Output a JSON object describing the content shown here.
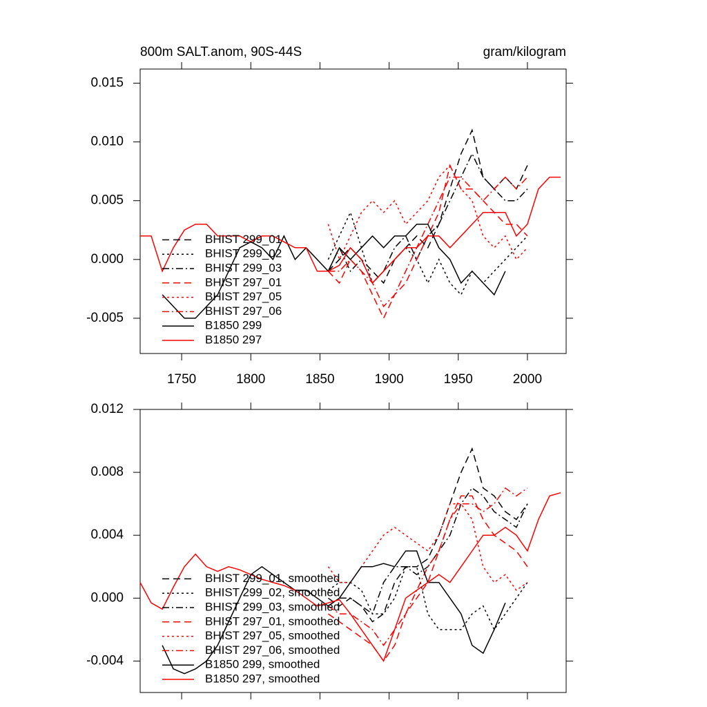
{
  "chart_data": [
    {
      "type": "line",
      "title": "800m SALT.anom, 90S-44S",
      "units": "gram/kilogram",
      "x": [
        1720,
        1728,
        1736,
        1744,
        1752,
        1760,
        1768,
        1776,
        1784,
        1792,
        1800,
        1808,
        1816,
        1824,
        1832,
        1840,
        1848,
        1856,
        1864,
        1872,
        1880,
        1888,
        1896,
        1904,
        1912,
        1920,
        1928,
        1936,
        1944,
        1952,
        1960,
        1968,
        1976,
        1984,
        1992,
        2000,
        2008,
        2016,
        2024
      ],
      "xlim": [
        1720,
        2028
      ],
      "xticks": [
        1750,
        1800,
        1850,
        1900,
        1950,
        2000
      ],
      "show_xtick_labels": true,
      "ylim": [
        -0.008,
        0.0162
      ],
      "yticks": [
        {
          "value": -0.005,
          "label": "-0.005"
        },
        {
          "value": 0,
          "label": "0.000"
        },
        {
          "value": 0.005,
          "label": "0.005"
        },
        {
          "value": 0.01,
          "label": "0.010"
        },
        {
          "value": 0.015,
          "label": "0.015"
        }
      ],
      "legend": "lower left",
      "series": [
        {
          "name": "BHIST 299_01",
          "color": "#000000",
          "dash": "dash",
          "values": [
            null,
            null,
            null,
            null,
            null,
            null,
            null,
            null,
            null,
            null,
            null,
            null,
            null,
            null,
            null,
            null,
            null,
            -0.001,
            0.0,
            0.001,
            0.0,
            -0.001,
            -0.002,
            0.0,
            0.001,
            0.002,
            0.001,
            0.003,
            0.006,
            0.009,
            0.011,
            0.007,
            0.006,
            0.007,
            0.006,
            0.008,
            null,
            null,
            null
          ]
        },
        {
          "name": "BHIST 299_02",
          "color": "#000000",
          "dash": "dot",
          "values": [
            null,
            null,
            null,
            null,
            null,
            null,
            null,
            null,
            null,
            null,
            null,
            null,
            null,
            null,
            null,
            null,
            null,
            0.0,
            0.002,
            0.004,
            0.001,
            -0.002,
            -0.001,
            0.0,
            0.001,
            0.0,
            -0.002,
            0.0,
            -0.002,
            -0.003,
            -0.001,
            -0.002,
            -0.001,
            0.0,
            0.001,
            0.002,
            null,
            null,
            null
          ]
        },
        {
          "name": "BHIST 299_03",
          "color": "#000000",
          "dash": "dashdot",
          "values": [
            null,
            null,
            null,
            null,
            null,
            null,
            null,
            null,
            null,
            null,
            null,
            null,
            null,
            null,
            null,
            null,
            null,
            -0.001,
            0.001,
            -0.001,
            0.0,
            -0.002,
            -0.001,
            0.001,
            0.002,
            0.0,
            0.002,
            0.003,
            0.005,
            0.007,
            0.009,
            0.007,
            0.006,
            0.005,
            0.005,
            0.006,
            null,
            null,
            null
          ]
        },
        {
          "name": "BHIST 297_01",
          "color": "#ff0000",
          "dash": "dash",
          "values": [
            null,
            null,
            null,
            null,
            null,
            null,
            null,
            null,
            null,
            null,
            null,
            null,
            null,
            null,
            null,
            null,
            null,
            -0.001,
            -0.002,
            0.0,
            -0.001,
            -0.003,
            -0.005,
            -0.003,
            -0.002,
            0.0,
            0.002,
            0.004,
            0.008,
            0.006,
            0.006,
            0.005,
            0.004,
            0.003,
            0.003,
            0.002,
            null,
            null,
            null
          ]
        },
        {
          "name": "BHIST 297_05",
          "color": "#ff0000",
          "dash": "dot",
          "values": [
            null,
            null,
            null,
            null,
            null,
            null,
            null,
            null,
            null,
            null,
            null,
            null,
            null,
            null,
            null,
            null,
            null,
            0.003,
            0.0,
            0.002,
            0.004,
            0.005,
            0.004,
            0.005,
            0.003,
            0.004,
            0.005,
            0.007,
            0.008,
            0.006,
            0.005,
            0.002,
            0.001,
            0.002,
            0.0,
            0.001,
            null,
            null,
            null
          ]
        },
        {
          "name": "BHIST 297_06",
          "color": "#ff0000",
          "dash": "dashdot",
          "values": [
            null,
            null,
            null,
            null,
            null,
            null,
            null,
            null,
            null,
            null,
            null,
            null,
            null,
            null,
            null,
            null,
            null,
            -0.001,
            -0.001,
            0.0,
            -0.001,
            -0.002,
            -0.004,
            -0.003,
            -0.001,
            0.001,
            0.003,
            0.005,
            0.007,
            0.007,
            0.006,
            0.005,
            0.006,
            0.007,
            0.006,
            0.007,
            null,
            null,
            null
          ]
        },
        {
          "name": "B1850 299",
          "color": "#000000",
          "dash": "solid",
          "values": [
            null,
            null,
            -0.003,
            -0.004,
            -0.005,
            -0.005,
            -0.004,
            -0.003,
            -0.001,
            0.001,
            0.0015,
            0.001,
            0.0,
            0.002,
            0.0,
            0.001,
            0.0,
            -0.001,
            0.001,
            0.0,
            0.001,
            0.002,
            0.001,
            0.002,
            0.002,
            0.003,
            0.003,
            0.001,
            0.0,
            -0.002,
            -0.001,
            -0.002,
            -0.003,
            -0.001,
            null,
            null,
            null,
            null,
            null
          ]
        },
        {
          "name": "B1850 297",
          "color": "#ff0000",
          "dash": "solid",
          "values": [
            0.002,
            0.002,
            -0.001,
            0.001,
            0.0025,
            0.003,
            0.003,
            0.002,
            0.002,
            0.002,
            0.0015,
            0.002,
            0.002,
            0.0015,
            0.001,
            0.001,
            -0.001,
            -0.001,
            -0.0005,
            0.001,
            0.0,
            -0.002,
            -0.001,
            0.0,
            0.001,
            0.001,
            0.002,
            0.002,
            0.001,
            0.002,
            0.003,
            0.004,
            0.004,
            0.004,
            0.002,
            0.003,
            0.006,
            0.007,
            0.007
          ]
        }
      ]
    },
    {
      "type": "line",
      "x": [
        1720,
        1728,
        1736,
        1744,
        1752,
        1760,
        1768,
        1776,
        1784,
        1792,
        1800,
        1808,
        1816,
        1824,
        1832,
        1840,
        1848,
        1856,
        1864,
        1872,
        1880,
        1888,
        1896,
        1904,
        1912,
        1920,
        1928,
        1936,
        1944,
        1952,
        1960,
        1968,
        1976,
        1984,
        1992,
        2000,
        2008,
        2016,
        2024
      ],
      "xlim": [
        1720,
        2028
      ],
      "xticks": [
        1750,
        1800,
        1850,
        1900,
        1950,
        2000
      ],
      "show_xtick_labels": false,
      "ylim": [
        -0.006,
        0.012
      ],
      "yticks": [
        -0.004,
        {
          "value": 0,
          "label": "0.000"
        },
        0.004,
        0.008,
        0.012
      ],
      "legend": "lower left",
      "series": [
        {
          "name": "BHIST 299_01, smoothed",
          "color": "#000000",
          "dash": "dash",
          "values": [
            null,
            null,
            null,
            null,
            null,
            null,
            null,
            null,
            null,
            null,
            null,
            null,
            null,
            null,
            null,
            null,
            null,
            0.0,
            -0.0005,
            0.0,
            -0.0005,
            -0.0015,
            -0.001,
            0.001,
            0.002,
            0.002,
            0.0025,
            0.004,
            0.006,
            0.008,
            0.0095,
            0.007,
            0.0065,
            0.0055,
            0.005,
            0.006,
            null,
            null,
            null
          ]
        },
        {
          "name": "BHIST 299_02, smoothed",
          "color": "#000000",
          "dash": "dot",
          "values": [
            null,
            null,
            null,
            null,
            null,
            null,
            null,
            null,
            null,
            null,
            null,
            null,
            null,
            null,
            null,
            null,
            null,
            0.0005,
            0.001,
            0.001,
            0.0005,
            -0.001,
            -0.001,
            0.0,
            0.002,
            0.002,
            -0.001,
            -0.002,
            -0.002,
            -0.002,
            -0.001,
            -0.0005,
            -0.002,
            -0.001,
            0.0,
            0.001,
            null,
            null,
            null
          ]
        },
        {
          "name": "BHIST 299_03, smoothed",
          "color": "#000000",
          "dash": "dashdot",
          "values": [
            null,
            null,
            null,
            null,
            null,
            null,
            null,
            null,
            null,
            null,
            null,
            null,
            null,
            null,
            null,
            null,
            null,
            -0.0005,
            0.0,
            0.0,
            -0.0005,
            -0.001,
            0.001,
            0.002,
            0.002,
            0.0015,
            0.002,
            0.003,
            0.004,
            0.006,
            0.007,
            0.0065,
            0.0055,
            0.005,
            0.0045,
            0.006,
            null,
            null,
            null
          ]
        },
        {
          "name": "BHIST 297_01, smoothed",
          "color": "#ff0000",
          "dash": "dash",
          "values": [
            null,
            null,
            null,
            null,
            null,
            null,
            null,
            null,
            null,
            null,
            null,
            null,
            null,
            null,
            null,
            null,
            null,
            -0.001,
            -0.0015,
            -0.002,
            -0.0025,
            -0.003,
            -0.004,
            -0.003,
            -0.001,
            0.0,
            0.001,
            0.003,
            0.005,
            0.0065,
            0.0065,
            0.005,
            0.004,
            0.0035,
            0.003,
            0.002,
            null,
            null,
            null
          ]
        },
        {
          "name": "BHIST 297_05, smoothed",
          "color": "#ff0000",
          "dash": "dot",
          "values": [
            null,
            null,
            null,
            null,
            null,
            null,
            null,
            null,
            null,
            null,
            null,
            null,
            null,
            null,
            null,
            null,
            null,
            0.002,
            0.001,
            0.001,
            0.002,
            0.003,
            0.004,
            0.0045,
            0.004,
            0.0035,
            0.003,
            0.004,
            0.006,
            0.006,
            0.005,
            0.002,
            0.001,
            0.0015,
            0.0005,
            0.001,
            null,
            null,
            null
          ]
        },
        {
          "name": "BHIST 297_06, smoothed",
          "color": "#ff0000",
          "dash": "dashdot",
          "values": [
            null,
            null,
            null,
            null,
            null,
            null,
            null,
            null,
            null,
            null,
            null,
            null,
            null,
            null,
            null,
            null,
            null,
            -0.0005,
            -0.001,
            -0.001,
            -0.0015,
            -0.002,
            -0.003,
            -0.002,
            -0.001,
            0.0005,
            0.002,
            0.003,
            0.005,
            0.006,
            0.006,
            0.0055,
            0.006,
            0.007,
            0.0065,
            0.007,
            null,
            null,
            null
          ]
        },
        {
          "name": "B1850 299, smoothed",
          "color": "#000000",
          "dash": "solid",
          "values": [
            null,
            null,
            -0.003,
            -0.0045,
            -0.0048,
            -0.0045,
            -0.004,
            -0.003,
            -0.0015,
            0.0,
            0.0015,
            0.002,
            0.0015,
            0.001,
            0.0005,
            0.0005,
            0.0,
            -0.0005,
            0.0,
            0.001,
            0.002,
            0.002,
            0.0022,
            0.002,
            0.003,
            0.003,
            0.001,
            0.001,
            0.0,
            -0.001,
            -0.003,
            -0.0035,
            -0.002,
            -0.0003,
            null,
            null,
            null,
            null,
            null
          ]
        },
        {
          "name": "B1850 297, smoothed",
          "color": "#ff0000",
          "dash": "solid",
          "values": [
            0.001,
            -0.0003,
            -0.0007,
            0.0007,
            0.002,
            0.0028,
            0.002,
            0.0017,
            0.002,
            0.0018,
            0.0015,
            0.0012,
            0.001,
            0.0008,
            0.0005,
            0.0,
            -0.0005,
            -0.0003,
            -0.0001,
            -0.001,
            -0.002,
            -0.003,
            -0.004,
            -0.002,
            0.0,
            0.0005,
            0.001,
            0.0015,
            0.001,
            0.002,
            0.003,
            0.004,
            0.004,
            0.0045,
            0.004,
            0.003,
            0.005,
            0.0065,
            0.0067
          ]
        }
      ]
    }
  ]
}
